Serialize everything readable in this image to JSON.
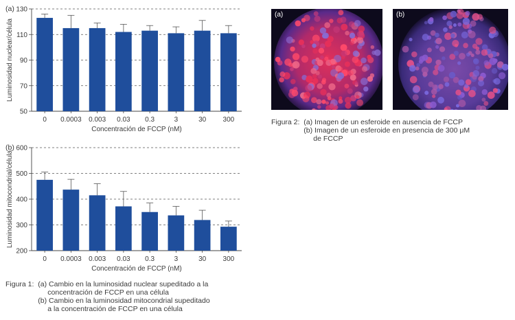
{
  "chart_data": [
    {
      "type": "bar",
      "panel_label": "(a)",
      "categories": [
        "0",
        "0.0003",
        "0.003",
        "0.03",
        "0.3",
        "3",
        "30",
        "300"
      ],
      "values": [
        123,
        115,
        115,
        112,
        113,
        111,
        113,
        111
      ],
      "errors": [
        3,
        10,
        4,
        6,
        4,
        5,
        8,
        6
      ],
      "xlabel": "Concentración de FCCP (nM)",
      "ylabel": "Luminosidad nuclear/célula",
      "ylim": [
        50,
        130
      ],
      "yticks": [
        "50",
        "70",
        "90",
        "110",
        "130"
      ],
      "grid": "horizontal dashed",
      "bar_color": "#1f4e9c"
    },
    {
      "type": "bar",
      "panel_label": "(b)",
      "categories": [
        "0",
        "0.0003",
        "0.003",
        "0.03",
        "0.3",
        "3",
        "30",
        "300"
      ],
      "values": [
        475,
        437,
        415,
        372,
        350,
        337,
        319,
        293
      ],
      "errors": [
        30,
        40,
        45,
        58,
        35,
        35,
        38,
        22
      ],
      "xlabel": "Concentración de FCCP (nM)",
      "ylabel": "Luminosidad mitocondrial/célula",
      "ylim": [
        200,
        600
      ],
      "yticks": [
        "200",
        "300",
        "400",
        "500",
        "600"
      ],
      "grid": "horizontal dashed",
      "bar_color": "#1f4e9c"
    }
  ],
  "figure1": {
    "lead_a": "Figura 1:  ",
    "lines_a": [
      "(a) Cambio en la luminosidad nuclear supeditado a la",
      "concentración de FCCP en una célula"
    ],
    "lines_b": [
      "(b) Cambio en la luminosidad mitocondrial supeditado",
      "a la concentración de FCCP en una célula"
    ]
  },
  "figure2": {
    "lead": "Figura 2:  ",
    "lines_a": [
      "(a) Imagen de un esferoide en ausencia de FCCP"
    ],
    "lines_b": [
      "(b) Imagen de un esferoide en presencia de 300 μM",
      "de FCCP"
    ]
  },
  "photos": {
    "a_label": "(a)",
    "b_label": "(b)"
  }
}
